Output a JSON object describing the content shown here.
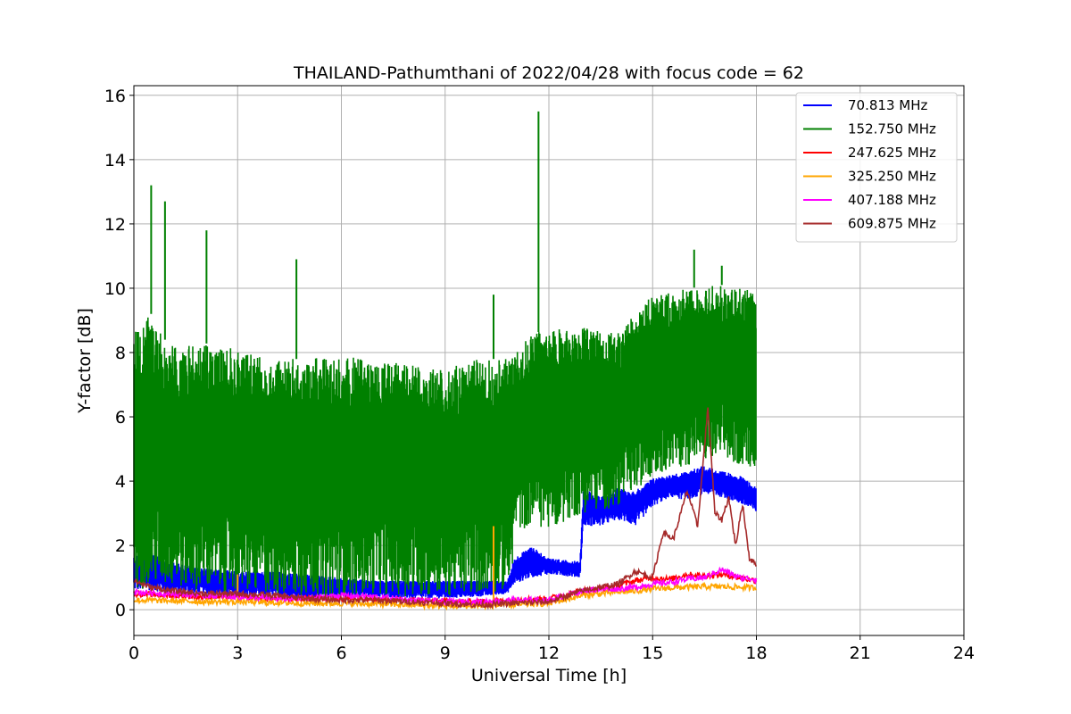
{
  "chart_data": {
    "type": "line",
    "title": "THAILAND-Pathumthani of 2022/04/28 with focus code = 62",
    "xlabel": "Universal Time [h]",
    "ylabel": "Y-factor [dB]",
    "xlim": [
      0,
      24
    ],
    "ylim": [
      -0.8,
      16.3
    ],
    "xticks": [
      0,
      3,
      6,
      9,
      12,
      15,
      18,
      21,
      24
    ],
    "yticks": [
      0,
      2,
      4,
      6,
      8,
      10,
      12,
      14,
      16
    ],
    "grid": true,
    "legend_position": "top-right",
    "series": [
      {
        "name": " 70.813 MHz",
        "color": "#0000ff",
        "band": [
          [
            0.0,
            0.6,
            1.7
          ],
          [
            0.5,
            0.6,
            1.9
          ],
          [
            1.0,
            0.5,
            1.5
          ],
          [
            2.0,
            0.5,
            1.3
          ],
          [
            3.0,
            0.4,
            1.2
          ],
          [
            4.0,
            0.4,
            1.2
          ],
          [
            5.0,
            0.3,
            1.1
          ],
          [
            6.0,
            0.4,
            1.0
          ],
          [
            7.0,
            0.4,
            0.9
          ],
          [
            8.0,
            0.35,
            0.9
          ],
          [
            9.0,
            0.35,
            0.9
          ],
          [
            10.0,
            0.4,
            0.9
          ],
          [
            10.8,
            0.5,
            0.9
          ],
          [
            11.0,
            0.8,
            1.6
          ],
          [
            11.5,
            1.0,
            2.0
          ],
          [
            12.0,
            1.1,
            1.6
          ],
          [
            12.9,
            1.0,
            1.5
          ],
          [
            13.0,
            2.6,
            3.8
          ],
          [
            13.5,
            2.6,
            3.5
          ],
          [
            14.0,
            2.8,
            3.8
          ],
          [
            14.5,
            2.6,
            3.7
          ],
          [
            15.0,
            3.2,
            4.1
          ],
          [
            15.5,
            3.5,
            4.2
          ],
          [
            16.0,
            3.4,
            4.3
          ],
          [
            16.5,
            3.6,
            4.5
          ],
          [
            17.0,
            3.5,
            4.3
          ],
          [
            17.5,
            3.3,
            4.2
          ],
          [
            18.0,
            3.0,
            3.8
          ]
        ]
      },
      {
        "name": "152.750 MHz",
        "color": "#008000",
        "band": [
          [
            0.0,
            0.6,
            8.8
          ],
          [
            0.5,
            0.7,
            9.2
          ],
          [
            1.0,
            0.7,
            8.2
          ],
          [
            2.0,
            0.6,
            8.3
          ],
          [
            3.0,
            0.5,
            8.1
          ],
          [
            4.0,
            0.5,
            7.8
          ],
          [
            5.0,
            0.4,
            7.8
          ],
          [
            6.0,
            0.4,
            7.9
          ],
          [
            7.0,
            0.5,
            7.8
          ],
          [
            8.0,
            0.4,
            7.6
          ],
          [
            9.0,
            0.4,
            7.5
          ],
          [
            10.0,
            0.5,
            7.8
          ],
          [
            10.9,
            0.6,
            7.8
          ],
          [
            11.0,
            2.4,
            8.0
          ],
          [
            11.5,
            2.6,
            8.6
          ],
          [
            12.0,
            2.5,
            8.7
          ],
          [
            13.0,
            3.0,
            8.8
          ],
          [
            14.0,
            3.2,
            8.6
          ],
          [
            15.0,
            4.2,
            9.8
          ],
          [
            16.0,
            4.5,
            10.0
          ],
          [
            17.0,
            4.6,
            10.1
          ],
          [
            18.0,
            4.4,
            9.9
          ]
        ],
        "spikes": [
          [
            0.5,
            13.2
          ],
          [
            0.9,
            12.7
          ],
          [
            2.1,
            11.8
          ],
          [
            4.7,
            10.9
          ],
          [
            10.4,
            9.8
          ],
          [
            11.7,
            15.5
          ],
          [
            16.2,
            11.2
          ],
          [
            17.0,
            10.7
          ]
        ]
      },
      {
        "name": "247.625 MHz",
        "color": "#ff0000",
        "x": [
          0,
          1,
          2,
          3,
          4,
          5,
          6,
          7,
          8,
          9,
          10,
          11,
          12,
          13,
          13.5,
          14,
          14.5,
          15,
          15.5,
          16,
          16.5,
          17,
          17.5,
          18
        ],
        "y": [
          0.5,
          0.45,
          0.4,
          0.4,
          0.35,
          0.35,
          0.35,
          0.3,
          0.3,
          0.25,
          0.25,
          0.3,
          0.35,
          0.6,
          0.65,
          0.75,
          0.9,
          1.0,
          0.95,
          1.1,
          1.05,
          1.1,
          1.0,
          0.9
        ]
      },
      {
        "name": "325.250 MHz",
        "color": "#ffa500",
        "x": [
          0,
          1,
          2,
          3,
          4,
          5,
          6,
          7,
          8,
          9,
          10,
          11,
          12,
          13,
          13.5,
          14,
          14.5,
          15,
          15.5,
          16,
          16.5,
          17,
          17.5,
          18
        ],
        "y": [
          0.3,
          0.28,
          0.25,
          0.25,
          0.22,
          0.2,
          0.2,
          0.18,
          0.15,
          0.12,
          0.12,
          0.15,
          0.2,
          0.45,
          0.5,
          0.55,
          0.58,
          0.65,
          0.68,
          0.7,
          0.72,
          0.72,
          0.7,
          0.68
        ],
        "spikes": [
          [
            3.0,
            1.1
          ],
          [
            10.4,
            2.6
          ]
        ]
      },
      {
        "name": "407.188 MHz",
        "color": "#ff00ff",
        "x": [
          0,
          1,
          2,
          3,
          4,
          5,
          6,
          7,
          8,
          9,
          10,
          11,
          12,
          13,
          13.5,
          14,
          14.5,
          15,
          15.5,
          16,
          16.5,
          17,
          17.5,
          18
        ],
        "y": [
          0.55,
          0.5,
          0.45,
          0.4,
          0.35,
          0.35,
          0.45,
          0.4,
          0.3,
          0.25,
          0.25,
          0.3,
          0.3,
          0.6,
          0.65,
          0.65,
          0.7,
          0.8,
          0.85,
          0.95,
          1.0,
          1.25,
          1.0,
          0.95
        ]
      },
      {
        "name": "609.875 MHz",
        "color": "#a52a2a",
        "x": [
          0,
          0.5,
          1,
          2,
          3,
          4,
          5,
          6,
          7,
          8,
          9,
          10,
          11,
          12,
          13,
          13.5,
          14,
          14.5,
          15,
          15.3,
          15.6,
          16,
          16.3,
          16.6,
          16.8,
          17,
          17.2,
          17.4,
          17.6,
          17.8,
          18
        ],
        "y": [
          0.9,
          0.7,
          0.6,
          0.5,
          0.5,
          0.45,
          0.35,
          0.3,
          0.3,
          0.25,
          0.2,
          0.15,
          0.2,
          0.25,
          0.6,
          0.7,
          0.8,
          1.2,
          1.0,
          2.4,
          2.2,
          3.7,
          2.6,
          6.3,
          3.0,
          2.8,
          3.5,
          2.0,
          3.3,
          1.6,
          1.4
        ]
      }
    ]
  }
}
